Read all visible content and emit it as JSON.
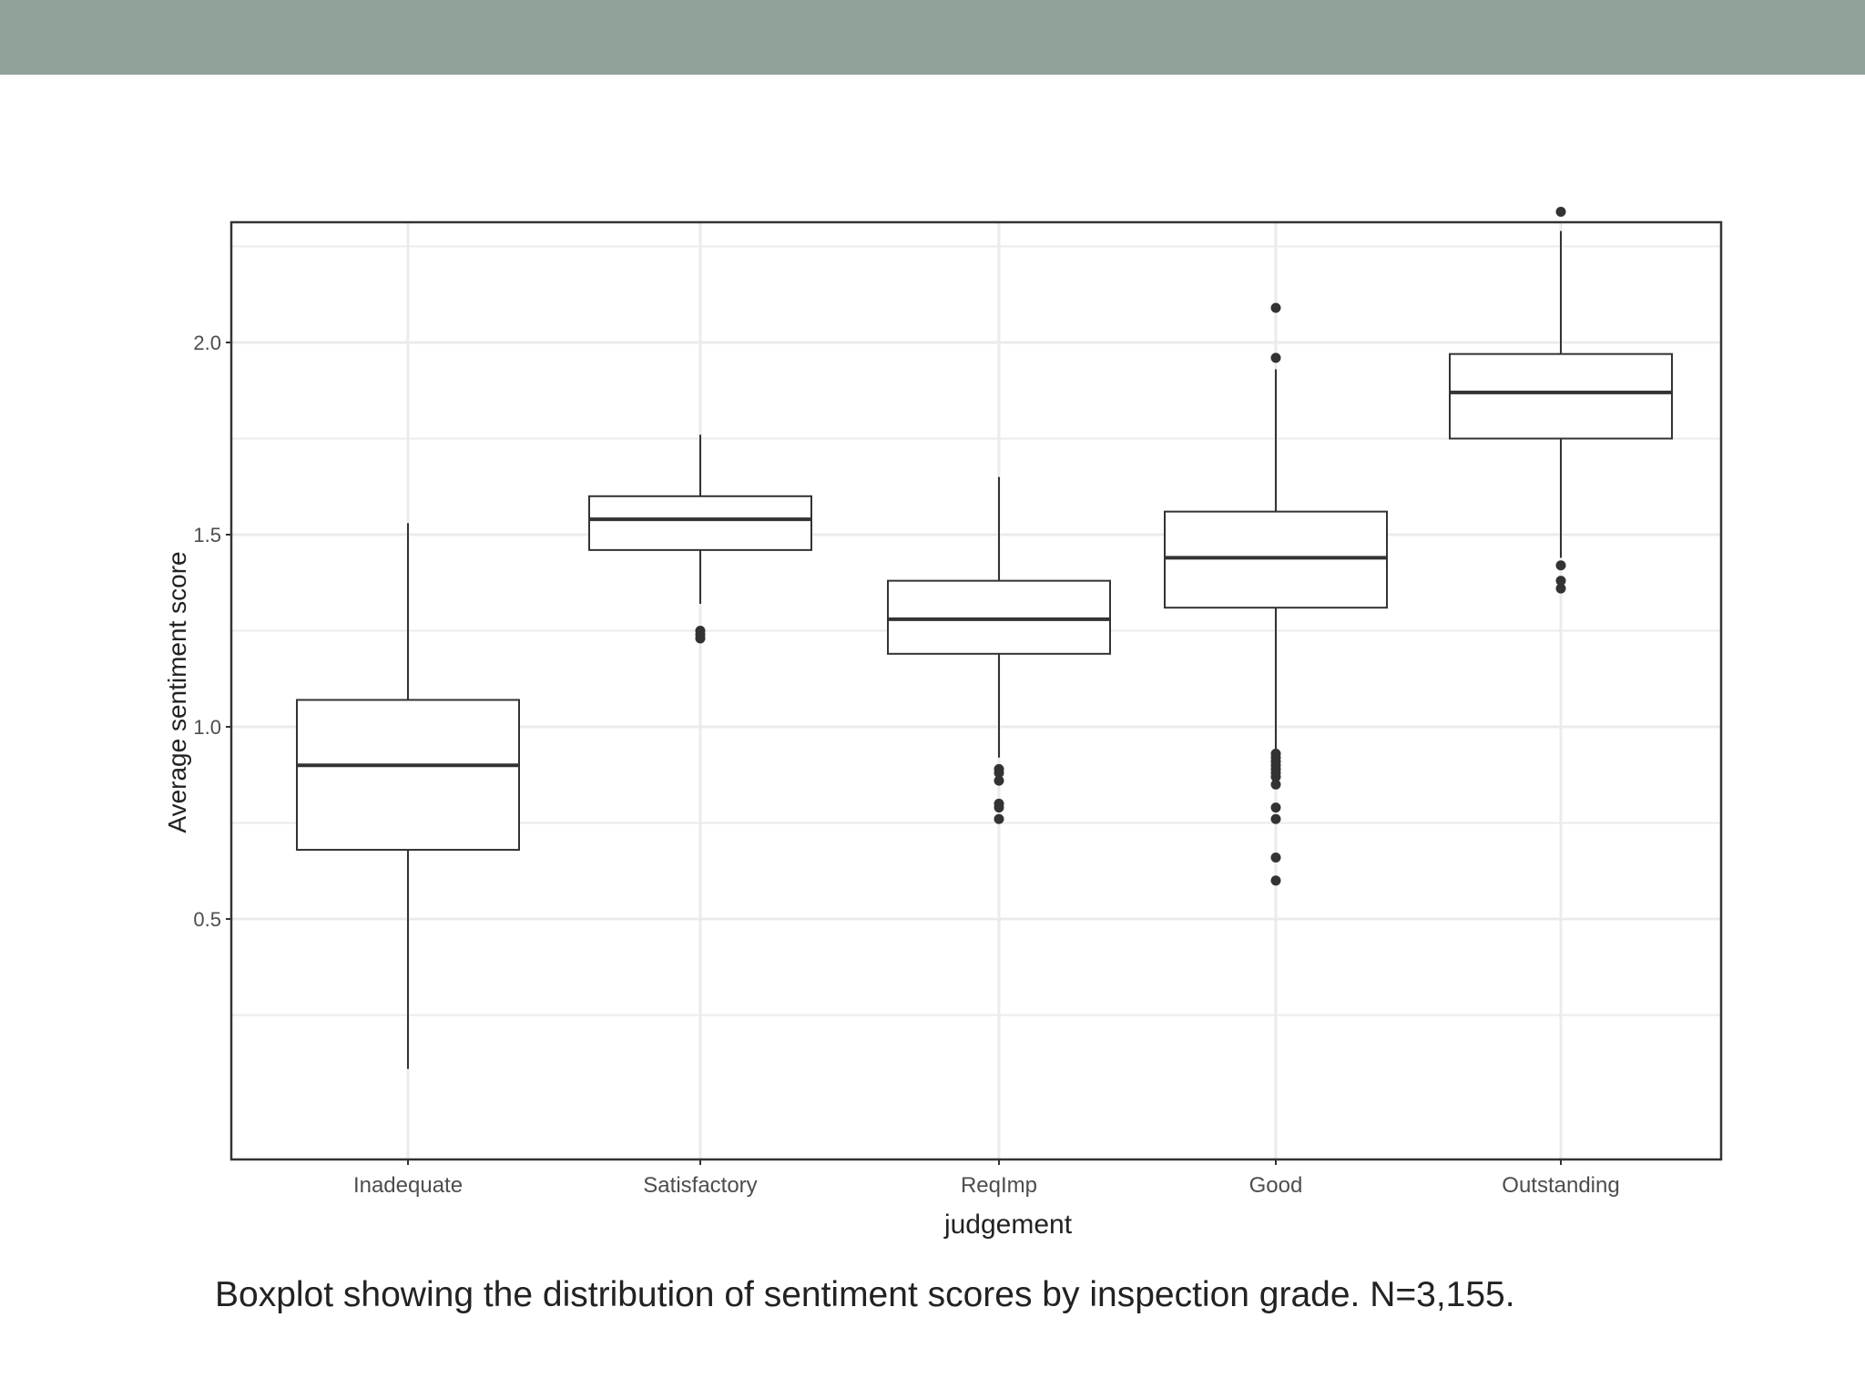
{
  "colors": {
    "header_band": "#91a299",
    "plot_border": "#333333",
    "grid": "#ebebeb",
    "box_stroke": "#333333",
    "text": "#4d4d4d",
    "caption_text": "#222222"
  },
  "caption": "Boxplot showing the distribution of sentiment scores by inspection grade. N=3,155.",
  "chart_data": {
    "type": "boxplot",
    "title": "",
    "xlabel": "judgement",
    "ylabel": "Average sentiment score",
    "ylim": [
      0.0,
      2.44
    ],
    "y_ticks": [
      0.5,
      1.0,
      1.5,
      2.0
    ],
    "y_tick_labels": [
      "0.5",
      "1.0",
      "1.5",
      "2.0"
    ],
    "grid": true,
    "categories": [
      "Inadequate",
      "Satisfactory",
      "ReqImp",
      "Good",
      "Outstanding"
    ],
    "boxes": [
      {
        "category": "Inadequate",
        "whisker_low": 0.11,
        "q1": 0.68,
        "median": 0.9,
        "q3": 1.07,
        "whisker_high": 1.53,
        "outliers": []
      },
      {
        "category": "Satisfactory",
        "whisker_low": 1.32,
        "q1": 1.46,
        "median": 1.54,
        "q3": 1.6,
        "whisker_high": 1.76,
        "outliers": [
          1.23,
          1.24,
          1.25
        ]
      },
      {
        "category": "ReqImp",
        "whisker_low": 0.92,
        "q1": 1.19,
        "median": 1.28,
        "q3": 1.38,
        "whisker_high": 1.65,
        "outliers": [
          0.89,
          0.88,
          0.86,
          0.8,
          0.79,
          0.76
        ]
      },
      {
        "category": "Good",
        "whisker_low": 0.94,
        "q1": 1.31,
        "median": 1.44,
        "q3": 1.56,
        "whisker_high": 1.93,
        "outliers": [
          2.09,
          1.96,
          0.93,
          0.92,
          0.91,
          0.9,
          0.89,
          0.88,
          0.87,
          0.85,
          0.79,
          0.76,
          0.66,
          0.6
        ]
      },
      {
        "category": "Outstanding",
        "whisker_low": 1.44,
        "q1": 1.75,
        "median": 1.87,
        "q3": 1.97,
        "whisker_high": 2.29,
        "outliers": [
          2.34,
          1.42,
          1.38,
          1.36
        ]
      }
    ]
  }
}
